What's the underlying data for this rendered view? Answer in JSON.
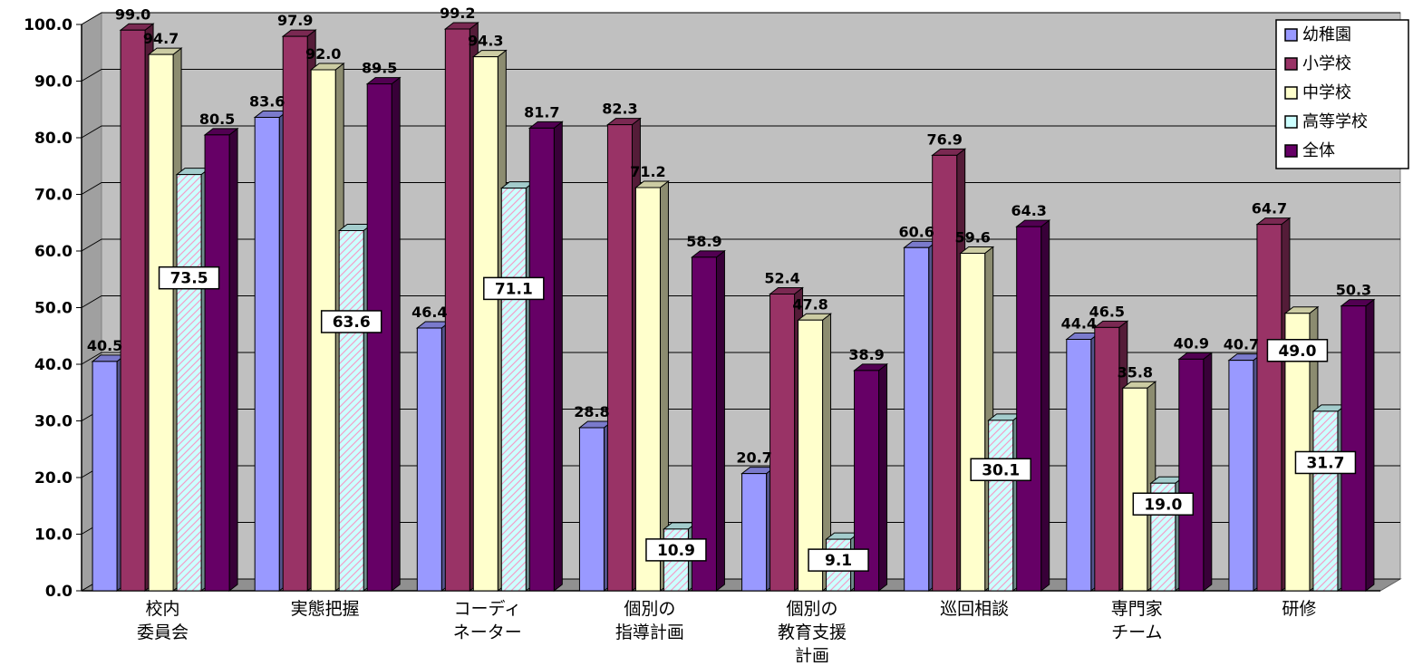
{
  "chart_data": {
    "type": "bar",
    "title": "",
    "xlabel": "",
    "ylabel": "",
    "ylim": [
      0,
      100
    ],
    "yticks": [
      "0.0",
      "10.0",
      "20.0",
      "30.0",
      "40.0",
      "50.0",
      "60.0",
      "70.0",
      "80.0",
      "90.0",
      "100.0"
    ],
    "categories": [
      [
        "校内",
        "委員会"
      ],
      [
        "実態把握"
      ],
      [
        "コーディ",
        "ネーター"
      ],
      [
        "個別の",
        "指導計画"
      ],
      [
        "個別の",
        "教育支援",
        "計画"
      ],
      [
        "巡回相談"
      ],
      [
        "専門家",
        "チーム"
      ],
      [
        "研修"
      ]
    ],
    "series": [
      {
        "name": "幼稚園",
        "color": "#9999ff",
        "values": [
          40.5,
          83.6,
          46.4,
          28.8,
          20.7,
          60.6,
          44.4,
          40.7
        ],
        "labels": [
          "40.5",
          "83.6",
          "46.4",
          "28.8",
          "20.7",
          "60.6",
          "44.4",
          "40.7"
        ]
      },
      {
        "name": "小学校",
        "color": "#993366",
        "values": [
          99.0,
          97.9,
          99.2,
          82.3,
          52.4,
          76.9,
          46.5,
          64.7
        ],
        "labels": [
          "99.0",
          "97.9",
          "99.2",
          "82.3",
          "52.4",
          "76.9",
          "46.5",
          "64.7"
        ]
      },
      {
        "name": "中学校",
        "color": "#ffffcc",
        "values": [
          94.7,
          92.0,
          94.3,
          71.2,
          47.8,
          59.6,
          35.8,
          49.0
        ],
        "labels": [
          "94.7",
          "92.0",
          "94.3",
          "71.2",
          "47.8",
          "59.6",
          "35.8",
          "49.0"
        ]
      },
      {
        "name": "高等学校",
        "color": "#ccffff",
        "values": [
          73.5,
          63.6,
          71.1,
          10.9,
          9.1,
          30.1,
          19.0,
          31.7
        ],
        "labels": [
          "73.5",
          "63.6",
          "71.1",
          "10.9",
          "9.1",
          "30.1",
          "19.0",
          "31.7"
        ]
      },
      {
        "name": "全体",
        "color": "#660066",
        "values": [
          80.5,
          89.5,
          81.7,
          58.9,
          38.9,
          64.3,
          40.9,
          50.3
        ],
        "labels": [
          "80.5",
          "89.5",
          "81.7",
          "58.9",
          "38.9",
          "64.3",
          "40.9",
          "50.3"
        ]
      }
    ],
    "grid": true,
    "legend_position": "top-right",
    "style": "3d-clustered-bar",
    "plot_background": "#c0c0c0"
  }
}
